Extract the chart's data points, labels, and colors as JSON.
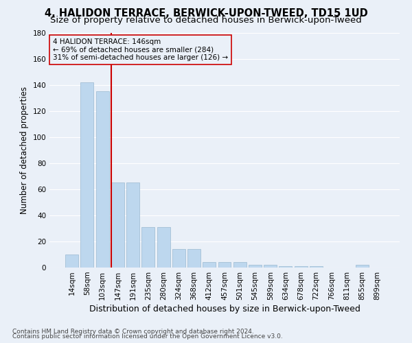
{
  "title": "4, HALIDON TERRACE, BERWICK-UPON-TWEED, TD15 1UD",
  "subtitle": "Size of property relative to detached houses in Berwick-upon-Tweed",
  "xlabel": "Distribution of detached houses by size in Berwick-upon-Tweed",
  "ylabel": "Number of detached properties",
  "bar_vals": [
    10,
    142,
    135,
    65,
    65,
    31,
    31,
    14,
    14,
    4,
    4,
    4,
    2,
    2,
    1,
    1,
    1,
    0,
    0,
    2
  ],
  "bar_labels": [
    "14sqm",
    "58sqm",
    "103sqm",
    "147sqm",
    "191sqm",
    "235sqm",
    "280sqm",
    "324sqm",
    "368sqm",
    "412sqm",
    "457sqm",
    "501sqm",
    "545sqm",
    "589sqm",
    "634sqm",
    "678sqm",
    "722sqm",
    "766sqm",
    "811sqm",
    "855sqm",
    "899sqm"
  ],
  "bar_color": "#bdd7ee",
  "bar_edge_color": "#9ab9d0",
  "background_color": "#eaf0f8",
  "grid_color": "#ffffff",
  "marker_label": "4 HALIDON TERRACE: 146sqm",
  "annotation_line1": "← 69% of detached houses are smaller (284)",
  "annotation_line2": "31% of semi-detached houses are larger (126) →",
  "marker_color": "#cc0000",
  "ylim": [
    0,
    180
  ],
  "yticks": [
    0,
    20,
    40,
    60,
    80,
    100,
    120,
    140,
    160,
    180
  ],
  "footnote1": "Contains HM Land Registry data © Crown copyright and database right 2024.",
  "footnote2": "Contains public sector information licensed under the Open Government Licence v3.0.",
  "title_fontsize": 10.5,
  "subtitle_fontsize": 9.5,
  "xlabel_fontsize": 9,
  "ylabel_fontsize": 8.5,
  "tick_fontsize": 7.5,
  "annot_fontsize": 7.5,
  "footnote_fontsize": 6.5
}
